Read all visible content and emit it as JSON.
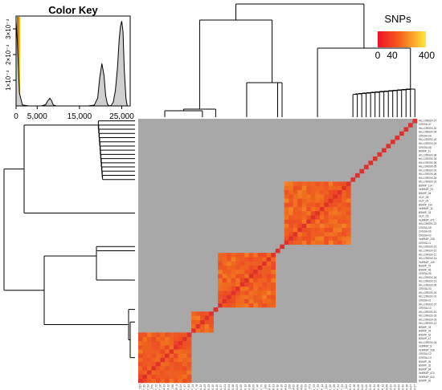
{
  "chart_data": [
    {
      "type": "area",
      "title": "Color Key",
      "xticks": [
        "0",
        "5,000",
        "15,000",
        "25,000"
      ],
      "xtick_values": [
        0,
        5000,
        15000,
        25000
      ],
      "yticks": [
        "1×10⁻⁴",
        "2×10⁻⁴",
        "3×10⁻⁴"
      ],
      "ytick_values": [
        0.0001,
        0.0002,
        0.0003
      ],
      "xlim": [
        0,
        27000
      ],
      "ylim": [
        0,
        0.00035
      ],
      "x": [
        0,
        300,
        800,
        1500,
        3000,
        5000,
        6000,
        7000,
        7500,
        8000,
        8400,
        8800,
        9500,
        11000,
        14000,
        17000,
        18500,
        19300,
        19800,
        20300,
        20800,
        21200,
        21600,
        22000,
        22500,
        23000,
        23500,
        24000,
        24400,
        24700,
        25000,
        25300,
        25600,
        26000,
        26300
      ],
      "y": [
        0.00033,
        0.00025,
        5e-05,
        4e-06,
        0.0,
        0.0,
        0.0,
        5e-06,
        2e-05,
        3e-05,
        2e-05,
        4e-06,
        0.0,
        0.0,
        0.0,
        0.0,
        3e-06,
        3e-05,
        0.00011,
        0.000165,
        0.00012,
        4e-05,
        8e-06,
        0.0,
        2e-06,
        1.5e-05,
        6e-05,
        0.00015,
        0.00026,
        0.00031,
        0.00033,
        0.00029,
        0.00014,
        3e-05,
        0.0
      ]
    },
    {
      "type": "heatmap",
      "legend_title": "SNPs",
      "legend_ticks": [
        "0",
        "40",
        "400"
      ],
      "legend_values": [
        0,
        40,
        400
      ],
      "colors": {
        "low": "#e8262b",
        "mid": "#f06a1e",
        "high": "#ffe33a",
        "background": "#a8a8a8",
        "diagonal": "#e0302a"
      },
      "clusters": [
        {
          "size": 12,
          "base": 0.42
        },
        {
          "size": 5,
          "base": 0.48
        },
        {
          "size": 1,
          "base": 0.1
        },
        {
          "size": 13,
          "base": 0.44
        },
        {
          "size": 1,
          "base": 0.1
        },
        {
          "size": 1,
          "base": 0.1
        },
        {
          "size": 15,
          "base": 0.46
        },
        {
          "size": 1,
          "base": 0.1
        },
        {
          "size": 1,
          "base": 0.1
        },
        {
          "size": 1,
          "base": 0.1
        },
        {
          "size": 1,
          "base": 0.1
        },
        {
          "size": 1,
          "base": 0.1
        },
        {
          "size": 1,
          "base": 0.1
        },
        {
          "size": 1,
          "base": 0.1
        },
        {
          "size": 1,
          "base": 0.1
        },
        {
          "size": 1,
          "base": 0.1
        },
        {
          "size": 1,
          "base": 0.1
        },
        {
          "size": 1,
          "base": 0.1
        },
        {
          "size": 1,
          "base": 0.1
        },
        {
          "size": 1,
          "base": 0.1
        },
        {
          "size": 1,
          "base": 0.1
        },
        {
          "size": 1,
          "base": 0.1
        }
      ],
      "row_labels": [
        "HILLCREEK-27",
        "CRESA-07",
        "HILLCREEK-30",
        "HILLCREEK-39",
        "CRESA-04",
        "HILLCREEK-32",
        "HILLCREEK-29",
        "CRESA-08",
        "BSMIP_11",
        "HILLCREEK-38",
        "HILLCREEK-34",
        "HILLCREEK-35",
        "HILLCREEK-05",
        "HILLCREEK-02",
        "HILLCREEK-06",
        "HILLCREEK-36",
        "HILLCREEK-31",
        "BSMIP_114",
        "VetRMIP_23",
        "BSMIP_34",
        "GUY_08",
        "GUY_09",
        "BSMIP_114",
        "VetRMIP_11",
        "BSMIP_33",
        "GUY_03",
        "VetRMIP_471",
        "HILLCREEK-23",
        "CRESA-09",
        "CRESA-06",
        "CRESA-02",
        "VetRMIP_228",
        "CRESA-11",
        "HILLCREEK-15",
        "HILLCREEK-10",
        "HILLCREEK-11",
        "HILLCREEK-14",
        "VetRMIP_140",
        "BSMIP_75",
        "BSMIP_46",
        "CRESA-05",
        "HILLCREEK-18",
        "HILLCREEK-13",
        "HILLCREEK-09",
        "CRESA-03",
        "HILLCREEK-26",
        "HILLCREEK-01",
        "CRESA-01",
        "HILLCREEK-37",
        "CRESA-10",
        "HILLCREEK-19",
        "HILLCREEK-33",
        "HILLCREEK-03",
        "HILLCREEK-12",
        "BSMIP_78",
        "BSMIP_24",
        "BSMIP_61",
        "BSMIP_47",
        "HILLCREEK-04",
        "VetRMIP_8",
        "VetRMIP_238",
        "CRESA-12",
        "CRESA-13",
        "BSMIP_06",
        "BSMIP_32",
        "BSMIP_64",
        "VetRMIP_670",
        "VetRMIP_613",
        "BSMIP_62"
      ],
      "col_labels": [
        "VetRMIP_613",
        "BSMIP_62",
        "BSMIP_64",
        "VetRMIP_670",
        "BSMIP_32",
        "BSMIP_06",
        "CRESA-13",
        "CRESA-12",
        "VetRMIP_238",
        "VetRMIP_8",
        "HILLCREEK-04",
        "BSMIP_47",
        "BSMIP_61",
        "BSMIP_24",
        "BSMIP_78",
        "HILLCREEK-12",
        "HILLCREEK-03",
        "HILLCREEK-33",
        "HILLCREEK-19",
        "CRESA-10",
        "HILLCREEK-37",
        "CRESA-01",
        "HILLCREEK-01",
        "HILLCREEK-26",
        "CRESA-03",
        "HILLCREEK-09",
        "HILLCREEK-13",
        "HILLCREEK-18",
        "CRESA-05",
        "BSMIP_46",
        "BSMIP_75",
        "VetRMIP_140",
        "HILLCREEK-14",
        "HILLCREEK-11",
        "HILLCREEK-10",
        "HILLCREEK-15",
        "CRESA-11",
        "VetRMIP_228",
        "CRESA-02",
        "CRESA-06",
        "CRESA-09",
        "HILLCREEK-23",
        "VetRMIP_471",
        "GUY_03",
        "BSMIP_33",
        "VetRMIP_11",
        "BSMIP_114",
        "GUY_09",
        "GUY_08",
        "BSMIP_34",
        "VetRMIP_23",
        "BSMIP_114",
        "HILLCREEK-31",
        "HILLCREEK-36",
        "HILLCREEK-06",
        "HILLCREEK-02",
        "HILLCREEK-05",
        "HILLCREEK-35",
        "HILLCREEK-34",
        "HILLCREEK-38",
        "BSMIP_11",
        "CRESA-08",
        "HILLCREEK-29",
        "HILLCREEK-32",
        "CRESA-04",
        "HILLCREEK-39",
        "HILLCREEK-30",
        "CRESA-07",
        "HILLCREEK-27"
      ]
    }
  ]
}
